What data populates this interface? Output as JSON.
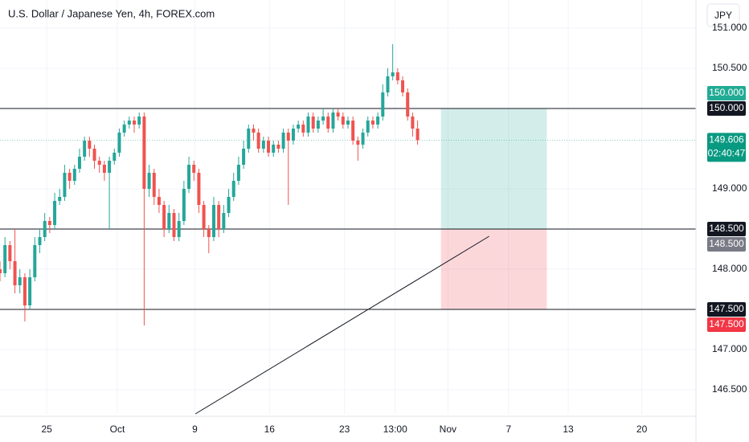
{
  "chart_data": {
    "type": "candlestick",
    "title": "U.S. Dollar / Japanese Yen, 4h, FOREX.com",
    "currency": "JPY",
    "up_color": "#26a69a",
    "down_color": "#ef5350",
    "grid": true,
    "xlim": [
      0,
      140
    ],
    "ylim": [
      146.2,
      151.35
    ],
    "xticks": [
      {
        "value": 9.4,
        "label": "25"
      },
      {
        "value": 23.6,
        "label": "Oct"
      },
      {
        "value": 39.2,
        "label": "9"
      },
      {
        "value": 54.2,
        "label": "16"
      },
      {
        "value": 69.3,
        "label": "23"
      },
      {
        "value": 79.5,
        "label": "13:00"
      },
      {
        "value": 90.1,
        "label": "Nov"
      },
      {
        "value": 102.3,
        "label": "7"
      },
      {
        "value": 114.3,
        "label": "13"
      },
      {
        "value": 129.1,
        "label": "20"
      }
    ],
    "yticks": [
      {
        "value": 146.5,
        "label": "146.500"
      },
      {
        "value": 147,
        "label": "147.000"
      },
      {
        "value": 148,
        "label": "148.000"
      },
      {
        "value": 149,
        "label": "149.000"
      },
      {
        "value": 150.5,
        "label": "150.500"
      },
      {
        "value": 151,
        "label": "151.000"
      }
    ],
    "candles": [
      [
        148.0,
        148.1,
        147.85,
        147.95
      ],
      [
        147.95,
        148.4,
        147.9,
        148.3
      ],
      [
        148.3,
        148.35,
        148.0,
        148.1
      ],
      [
        148.1,
        148.5,
        147.7,
        147.8
      ],
      [
        147.8,
        148.0,
        147.7,
        147.9
      ],
      [
        147.9,
        147.95,
        147.35,
        147.55
      ],
      [
        147.55,
        148.0,
        147.5,
        147.9
      ],
      [
        147.9,
        148.4,
        147.85,
        148.3
      ],
      [
        148.3,
        148.5,
        148.2,
        148.4
      ],
      [
        148.4,
        148.7,
        148.35,
        148.6
      ],
      [
        148.6,
        148.65,
        148.45,
        148.55
      ],
      [
        148.55,
        148.95,
        148.5,
        148.85
      ],
      [
        148.85,
        149.0,
        148.8,
        148.9
      ],
      [
        148.9,
        149.3,
        148.85,
        149.2
      ],
      [
        149.2,
        149.25,
        149.0,
        149.1
      ],
      [
        149.1,
        149.3,
        149.05,
        149.25
      ],
      [
        149.25,
        149.5,
        149.2,
        149.4
      ],
      [
        149.4,
        149.65,
        149.35,
        149.6
      ],
      [
        149.6,
        149.65,
        149.4,
        149.5
      ],
      [
        149.5,
        149.55,
        149.25,
        149.35
      ],
      [
        149.35,
        149.4,
        149.2,
        149.3
      ],
      [
        149.3,
        149.35,
        149.1,
        149.2
      ],
      [
        149.2,
        149.4,
        148.5,
        149.35
      ],
      [
        149.35,
        149.5,
        149.3,
        149.45
      ],
      [
        149.45,
        149.75,
        149.4,
        149.7
      ],
      [
        149.7,
        149.85,
        149.65,
        149.8
      ],
      [
        149.8,
        149.9,
        149.75,
        149.85
      ],
      [
        149.85,
        149.9,
        149.7,
        149.8
      ],
      [
        149.8,
        149.95,
        149.75,
        149.9
      ],
      [
        149.9,
        149.95,
        147.3,
        149.0
      ],
      [
        149.0,
        149.3,
        148.9,
        149.2
      ],
      [
        149.2,
        149.25,
        148.8,
        148.9
      ],
      [
        148.9,
        149.0,
        148.7,
        148.8
      ],
      [
        148.8,
        148.85,
        148.4,
        148.5
      ],
      [
        148.5,
        148.8,
        148.45,
        148.7
      ],
      [
        148.7,
        148.75,
        148.35,
        148.4
      ],
      [
        148.4,
        148.7,
        148.35,
        148.6
      ],
      [
        148.6,
        149.1,
        148.55,
        149.0
      ],
      [
        149.0,
        149.4,
        148.95,
        149.3
      ],
      [
        149.3,
        149.35,
        149.1,
        149.2
      ],
      [
        149.2,
        149.25,
        148.7,
        148.8
      ],
      [
        148.8,
        148.85,
        148.4,
        148.5
      ],
      [
        148.5,
        148.55,
        148.2,
        148.4
      ],
      [
        148.4,
        148.9,
        148.35,
        148.8
      ],
      [
        148.8,
        148.85,
        148.4,
        148.5
      ],
      [
        148.5,
        148.8,
        148.45,
        148.7
      ],
      [
        148.7,
        149.0,
        148.65,
        148.9
      ],
      [
        148.9,
        149.2,
        148.85,
        149.1
      ],
      [
        149.1,
        149.4,
        149.05,
        149.3
      ],
      [
        149.3,
        149.6,
        149.25,
        149.5
      ],
      [
        149.5,
        149.8,
        149.45,
        149.75
      ],
      [
        149.75,
        149.8,
        149.6,
        149.7
      ],
      [
        149.7,
        149.75,
        149.45,
        149.5
      ],
      [
        149.5,
        149.65,
        149.45,
        149.6
      ],
      [
        149.6,
        149.65,
        149.4,
        149.45
      ],
      [
        149.45,
        149.6,
        149.4,
        149.55
      ],
      [
        149.55,
        149.6,
        149.45,
        149.5
      ],
      [
        149.5,
        149.75,
        149.45,
        149.7
      ],
      [
        149.7,
        149.75,
        148.8,
        149.6
      ],
      [
        149.6,
        149.8,
        149.55,
        149.75
      ],
      [
        149.75,
        149.85,
        149.7,
        149.8
      ],
      [
        149.8,
        149.85,
        149.65,
        149.7
      ],
      [
        149.7,
        149.95,
        149.65,
        149.9
      ],
      [
        149.9,
        149.95,
        149.7,
        149.75
      ],
      [
        149.75,
        149.9,
        149.7,
        149.85
      ],
      [
        149.85,
        150.0,
        149.8,
        149.9
      ],
      [
        149.9,
        149.95,
        149.7,
        149.75
      ],
      [
        149.75,
        150.0,
        149.7,
        149.95
      ],
      [
        149.95,
        150.0,
        149.85,
        149.9
      ],
      [
        149.9,
        149.95,
        149.75,
        149.8
      ],
      [
        149.8,
        149.9,
        149.75,
        149.85
      ],
      [
        149.85,
        149.9,
        149.55,
        149.6
      ],
      [
        149.6,
        149.65,
        149.35,
        149.55
      ],
      [
        149.55,
        149.75,
        149.5,
        149.7
      ],
      [
        149.7,
        149.9,
        149.65,
        149.85
      ],
      [
        149.85,
        149.9,
        149.75,
        149.8
      ],
      [
        149.8,
        149.95,
        149.75,
        149.9
      ],
      [
        149.9,
        150.3,
        149.85,
        150.2
      ],
      [
        150.2,
        150.5,
        150.15,
        150.4
      ],
      [
        150.4,
        150.8,
        150.35,
        150.45
      ],
      [
        150.45,
        150.5,
        150.3,
        150.35
      ],
      [
        150.35,
        150.4,
        150.15,
        150.2
      ],
      [
        150.2,
        150.25,
        149.85,
        149.9
      ],
      [
        149.9,
        149.95,
        149.65,
        149.75
      ],
      [
        149.75,
        149.85,
        149.55,
        149.606
      ]
    ],
    "hlines": [
      {
        "value": 150,
        "label": "150.000"
      },
      {
        "value": 148.5,
        "label": "148.500"
      },
      {
        "value": 147.5,
        "label": "147.500"
      }
    ],
    "position": {
      "x": [
        88.7,
        110
      ],
      "target": {
        "value": 150,
        "label": "150.000",
        "color": "#22ab94"
      },
      "entry": {
        "value": 148.5,
        "label": "148.500",
        "color": "#787b86"
      },
      "stop": {
        "value": 147.5,
        "label": "147.500",
        "color": "#f23645"
      }
    },
    "last_price": {
      "value": 149.606,
      "label": "149.606",
      "countdown": "02:40:47",
      "color": "#089981"
    },
    "trendline": {
      "x": [
        39.3,
        98.4
      ],
      "y": [
        146.2,
        148.41
      ]
    }
  }
}
